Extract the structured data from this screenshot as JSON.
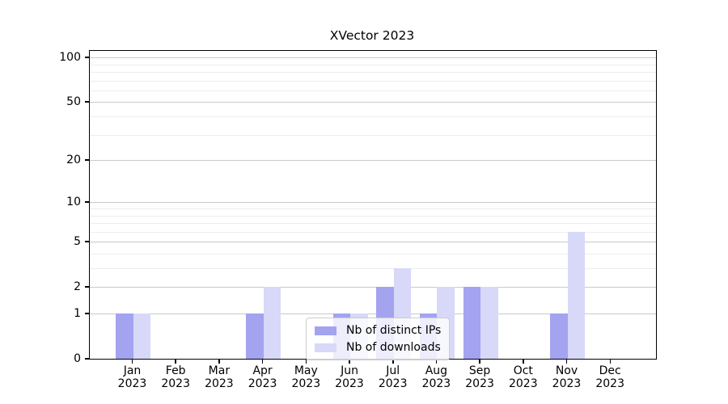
{
  "title": "XVector 2023",
  "chart_data": {
    "type": "bar",
    "title": "XVector 2023",
    "months": [
      "Jan",
      "Feb",
      "Mar",
      "Apr",
      "May",
      "Jun",
      "Jul",
      "Aug",
      "Sep",
      "Oct",
      "Nov",
      "Dec"
    ],
    "year": "2023",
    "series": [
      {
        "name": "Nb of distinct IPs",
        "color": "#a3a3f0",
        "values": [
          1,
          0,
          0,
          1,
          0,
          1,
          2,
          1,
          2,
          0,
          1,
          0
        ]
      },
      {
        "name": "Nb of downloads",
        "color": "#d8d8f8",
        "values": [
          1,
          0,
          0,
          2,
          0,
          1,
          3,
          2,
          2,
          0,
          6,
          0
        ]
      }
    ],
    "y_axis": {
      "scale": "log1p",
      "ticks": [
        0,
        1,
        2,
        5,
        10,
        20,
        50,
        100
      ],
      "minor_gridlines": [
        3,
        4,
        6,
        7,
        8,
        9,
        30,
        40,
        60,
        70,
        80,
        90
      ],
      "ylim": [
        0,
        100
      ]
    },
    "legend": {
      "position": "inside-bottom-center"
    },
    "grid": true,
    "colors": {
      "major_grid": "#c9c9c9",
      "minor_grid": "#ededed",
      "axis": "#000000",
      "background": "#ffffff"
    }
  }
}
